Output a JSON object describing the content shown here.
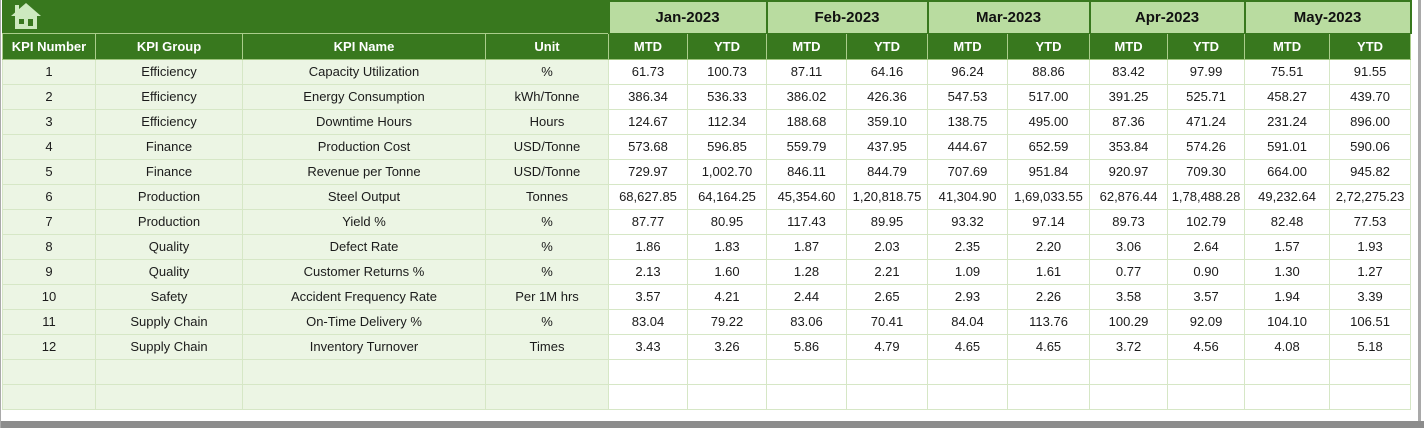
{
  "window": {
    "home_button": {
      "icon": "home-icon"
    }
  },
  "table": {
    "left_headers": [
      "KPI Number",
      "KPI Group",
      "KPI Name",
      "Unit"
    ],
    "months": [
      "Jan-2023",
      "Feb-2023",
      "Mar-2023",
      "Apr-2023",
      "May-2023"
    ],
    "sub_headers": [
      "MTD",
      "YTD"
    ],
    "rows": [
      {
        "kpi_number": "1",
        "kpi_group": "Efficiency",
        "kpi_name": "Capacity Utilization",
        "unit": "%",
        "values": [
          "61.73",
          "100.73",
          "87.11",
          "64.16",
          "96.24",
          "88.86",
          "83.42",
          "97.99",
          "75.51",
          "91.55"
        ]
      },
      {
        "kpi_number": "2",
        "kpi_group": "Efficiency",
        "kpi_name": "Energy Consumption",
        "unit": "kWh/Tonne",
        "values": [
          "386.34",
          "536.33",
          "386.02",
          "426.36",
          "547.53",
          "517.00",
          "391.25",
          "525.71",
          "458.27",
          "439.70"
        ]
      },
      {
        "kpi_number": "3",
        "kpi_group": "Efficiency",
        "kpi_name": "Downtime Hours",
        "unit": "Hours",
        "values": [
          "124.67",
          "112.34",
          "188.68",
          "359.10",
          "138.75",
          "495.00",
          "87.36",
          "471.24",
          "231.24",
          "896.00"
        ]
      },
      {
        "kpi_number": "4",
        "kpi_group": "Finance",
        "kpi_name": "Production Cost",
        "unit": "USD/Tonne",
        "values": [
          "573.68",
          "596.85",
          "559.79",
          "437.95",
          "444.67",
          "652.59",
          "353.84",
          "574.26",
          "591.01",
          "590.06"
        ]
      },
      {
        "kpi_number": "5",
        "kpi_group": "Finance",
        "kpi_name": "Revenue per Tonne",
        "unit": "USD/Tonne",
        "values": [
          "729.97",
          "1,002.70",
          "846.11",
          "844.79",
          "707.69",
          "951.84",
          "920.97",
          "709.30",
          "664.00",
          "945.82"
        ]
      },
      {
        "kpi_number": "6",
        "kpi_group": "Production",
        "kpi_name": "Steel Output",
        "unit": "Tonnes",
        "values": [
          "68,627.85",
          "64,164.25",
          "45,354.60",
          "1,20,818.75",
          "41,304.90",
          "1,69,033.55",
          "62,876.44",
          "1,78,488.28",
          "49,232.64",
          "2,72,275.23"
        ]
      },
      {
        "kpi_number": "7",
        "kpi_group": "Production",
        "kpi_name": "Yield %",
        "unit": "%",
        "values": [
          "87.77",
          "80.95",
          "117.43",
          "89.95",
          "93.32",
          "97.14",
          "89.73",
          "102.79",
          "82.48",
          "77.53"
        ]
      },
      {
        "kpi_number": "8",
        "kpi_group": "Quality",
        "kpi_name": "Defect Rate",
        "unit": "%",
        "values": [
          "1.86",
          "1.83",
          "1.87",
          "2.03",
          "2.35",
          "2.20",
          "3.06",
          "2.64",
          "1.57",
          "1.93"
        ]
      },
      {
        "kpi_number": "9",
        "kpi_group": "Quality",
        "kpi_name": "Customer Returns %",
        "unit": "%",
        "values": [
          "2.13",
          "1.60",
          "1.28",
          "2.21",
          "1.09",
          "1.61",
          "0.77",
          "0.90",
          "1.30",
          "1.27"
        ]
      },
      {
        "kpi_number": "10",
        "kpi_group": "Safety",
        "kpi_name": "Accident Frequency Rate",
        "unit": "Per 1M hrs",
        "values": [
          "3.57",
          "4.21",
          "2.44",
          "2.65",
          "2.93",
          "2.26",
          "3.58",
          "3.57",
          "1.94",
          "3.39"
        ]
      },
      {
        "kpi_number": "11",
        "kpi_group": "Supply Chain",
        "kpi_name": "On-Time Delivery %",
        "unit": "%",
        "values": [
          "83.04",
          "79.22",
          "83.06",
          "70.41",
          "84.04",
          "113.76",
          "100.29",
          "92.09",
          "104.10",
          "106.51"
        ]
      },
      {
        "kpi_number": "12",
        "kpi_group": "Supply Chain",
        "kpi_name": "Inventory Turnover",
        "unit": "Times",
        "values": [
          "3.43",
          "3.26",
          "5.86",
          "4.79",
          "4.65",
          "4.65",
          "3.72",
          "4.56",
          "4.08",
          "5.18"
        ]
      }
    ],
    "empty_row_count": 2
  },
  "colors": {
    "header_dark_green": "#38781e",
    "month_header_green": "#b9dca0",
    "row_tint_green": "#ecf5e4",
    "cell_border_green": "#d6e7c6",
    "header_separator_green": "#aacd8b",
    "text_dark": "#1b1b1b",
    "header_text_white": "#ffffff",
    "window_edge_gray": "#8c8c8c"
  }
}
